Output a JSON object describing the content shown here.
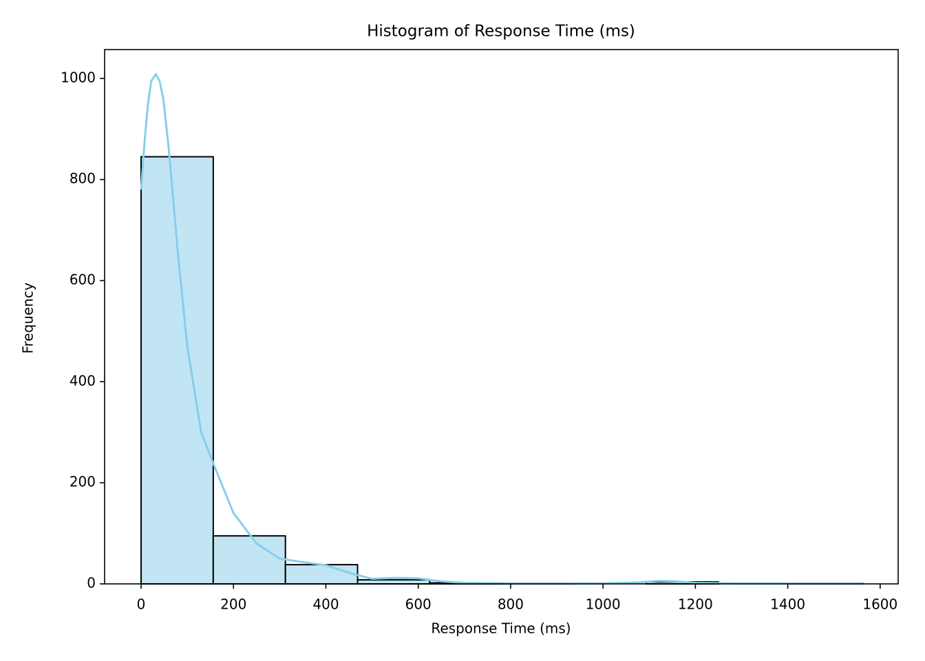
{
  "chart_data": {
    "type": "histogram",
    "title": "Histogram of Response Time (ms)",
    "x_label": "Response Time (ms)",
    "y_label": "Frequency",
    "bins": [
      0,
      156.2,
      312.4,
      468.6,
      624.8,
      781,
      937.2,
      1093.4,
      1249.6,
      1405.8,
      1562
    ],
    "counts": [
      845,
      95,
      38,
      8,
      2,
      1,
      0,
      4,
      0,
      1
    ],
    "color": "#c2e5f3",
    "edgecolor": "#000000",
    "kde": {
      "color": "#87ceeb",
      "x": [
        0,
        8,
        15,
        22,
        32,
        40,
        48,
        60,
        80,
        100,
        130,
        160,
        200,
        250,
        300,
        350,
        400,
        450,
        500,
        550,
        600,
        650,
        700,
        800,
        1000,
        1080,
        1120,
        1160,
        1200,
        1300,
        1562
      ],
      "values": [
        780,
        880,
        950,
        995,
        1008,
        995,
        960,
        860,
        650,
        470,
        300,
        230,
        140,
        80,
        50,
        43,
        37,
        22,
        10,
        12,
        11,
        5,
        2,
        1,
        1,
        3,
        6,
        5,
        2,
        1,
        1
      ]
    },
    "xlim": [
      -79,
      1639
    ],
    "ylim": [
      0,
      1057
    ],
    "xticks": [
      0,
      200,
      400,
      600,
      800,
      1000,
      1200,
      1400,
      1600
    ],
    "yticks": [
      0,
      200,
      400,
      600,
      800,
      1000
    ],
    "grid": false
  }
}
